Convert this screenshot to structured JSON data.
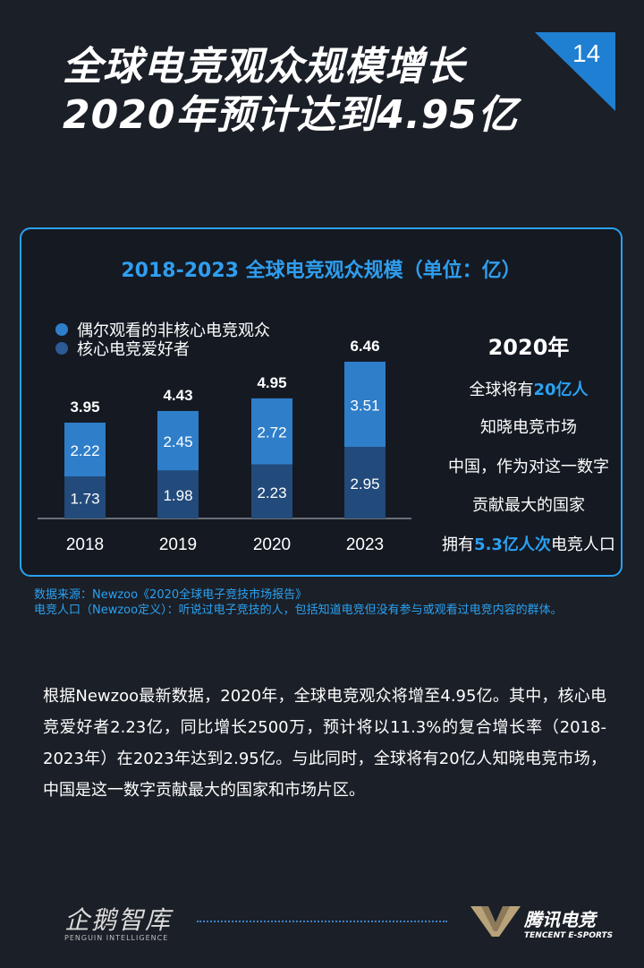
{
  "header": {
    "title_line1": "全球电竞观众规模增长",
    "title_line2": "2020年预计达到4.95亿",
    "page_number": "14"
  },
  "colors": {
    "background": "#1b1f27",
    "accent": "#2aa1f2",
    "series_top": "#2f7ec9",
    "series_bottom": "#224a7a"
  },
  "chart_data": {
    "type": "bar",
    "stacked": true,
    "title": "2018-2023 全球电竞观众规模（单位：亿）",
    "categories": [
      "2018",
      "2019",
      "2020",
      "2023"
    ],
    "series": [
      {
        "name": "核心电竞爱好者",
        "values": [
          1.73,
          1.98,
          2.23,
          2.95
        ],
        "labels": [
          "1.73",
          "1.98",
          "2.23",
          "2.95"
        ]
      },
      {
        "name": "偶尔观看的非核心电竞观众",
        "values": [
          2.22,
          2.45,
          2.72,
          3.51
        ],
        "labels": [
          "2.22",
          "2.45",
          "2.72",
          "3.51"
        ]
      }
    ],
    "totals": [
      3.95,
      4.43,
      4.95,
      6.46
    ],
    "total_labels": [
      "3.95",
      "4.43",
      "4.95",
      "6.46"
    ],
    "legend": [
      "偶尔观看的非核心电竞观众",
      "核心电竞爱好者"
    ],
    "xlabel": "",
    "ylabel": "",
    "ylim": [
      0,
      7
    ]
  },
  "side_note": {
    "year": "2020年",
    "line1_pre": "全球将有",
    "line1_highlight": "20亿人",
    "line2": "知晓电竞市场",
    "line3": "中国，作为对这一数字",
    "line4": "贡献最大的国家",
    "line5_pre": "拥有",
    "line5_highlight": "5.3亿人次",
    "line5_post": "电竞人口"
  },
  "source": {
    "line1": "数据来源：Newzoo《2020全球电子竞技市场报告》",
    "line2": "电竞人口（Newzoo定义）：听说过电子竞技的人，包括知道电竞但没有参与或观看过电竞内容的群体。"
  },
  "body": {
    "paragraph": "根据Newzoo最新数据，2020年，全球电竞观众将增至4.95亿。其中，核心电竞爱好者2.23亿，同比增长2500万，预计将以11.3%的复合增长率（2018-2023年）在2023年达到2.95亿。与此同时，全球将有20亿人知晓电竞市场，中国是这一数字贡献最大的国家和市场片区。"
  },
  "footer": {
    "left_brand": "企鹅智库",
    "left_brand_sub": "PENGUIN INTELLIGENCE",
    "right_brand": "腾讯电竞",
    "right_brand_sub": "TENCENT E-SPORTS"
  }
}
